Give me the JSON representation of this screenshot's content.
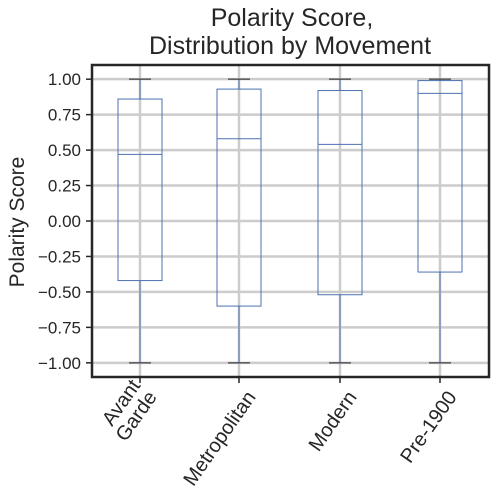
{
  "chart_data": {
    "type": "box",
    "title": [
      "Polarity Score,",
      "Distribution by Movement"
    ],
    "ylabel": "Polarity Score",
    "xlabel": "",
    "ylim": [
      -1.1,
      1.1
    ],
    "yticks": [
      "1.00",
      "0.75",
      "0.50",
      "0.25",
      "0.00",
      "−0.25",
      "−0.50",
      "−0.75",
      "−1.00"
    ],
    "ytick_values": [
      1.0,
      0.75,
      0.5,
      0.25,
      0.0,
      -0.25,
      -0.5,
      -0.75,
      -1.0
    ],
    "grid": true,
    "categories": [
      [
        "Avant",
        "Garde"
      ],
      [
        "Metropolitan"
      ],
      [
        "Modern"
      ],
      [
        "Pre-1900"
      ]
    ],
    "boxes": [
      {
        "whisker_low": -1.0,
        "q1": -0.42,
        "median": 0.47,
        "q3": 0.86,
        "whisker_high": 1.0
      },
      {
        "whisker_low": -1.0,
        "q1": -0.6,
        "median": 0.58,
        "q3": 0.93,
        "whisker_high": 1.0
      },
      {
        "whisker_low": -1.0,
        "q1": -0.52,
        "median": 0.54,
        "q3": 0.92,
        "whisker_high": 1.0
      },
      {
        "whisker_low": -1.0,
        "q1": -0.36,
        "median": 0.9,
        "q3": 0.99,
        "whisker_high": 1.0
      }
    ],
    "colors": {
      "box": "#4c72b0",
      "grid": "#cccccc",
      "axis": "#262626",
      "text": "#262626"
    }
  }
}
